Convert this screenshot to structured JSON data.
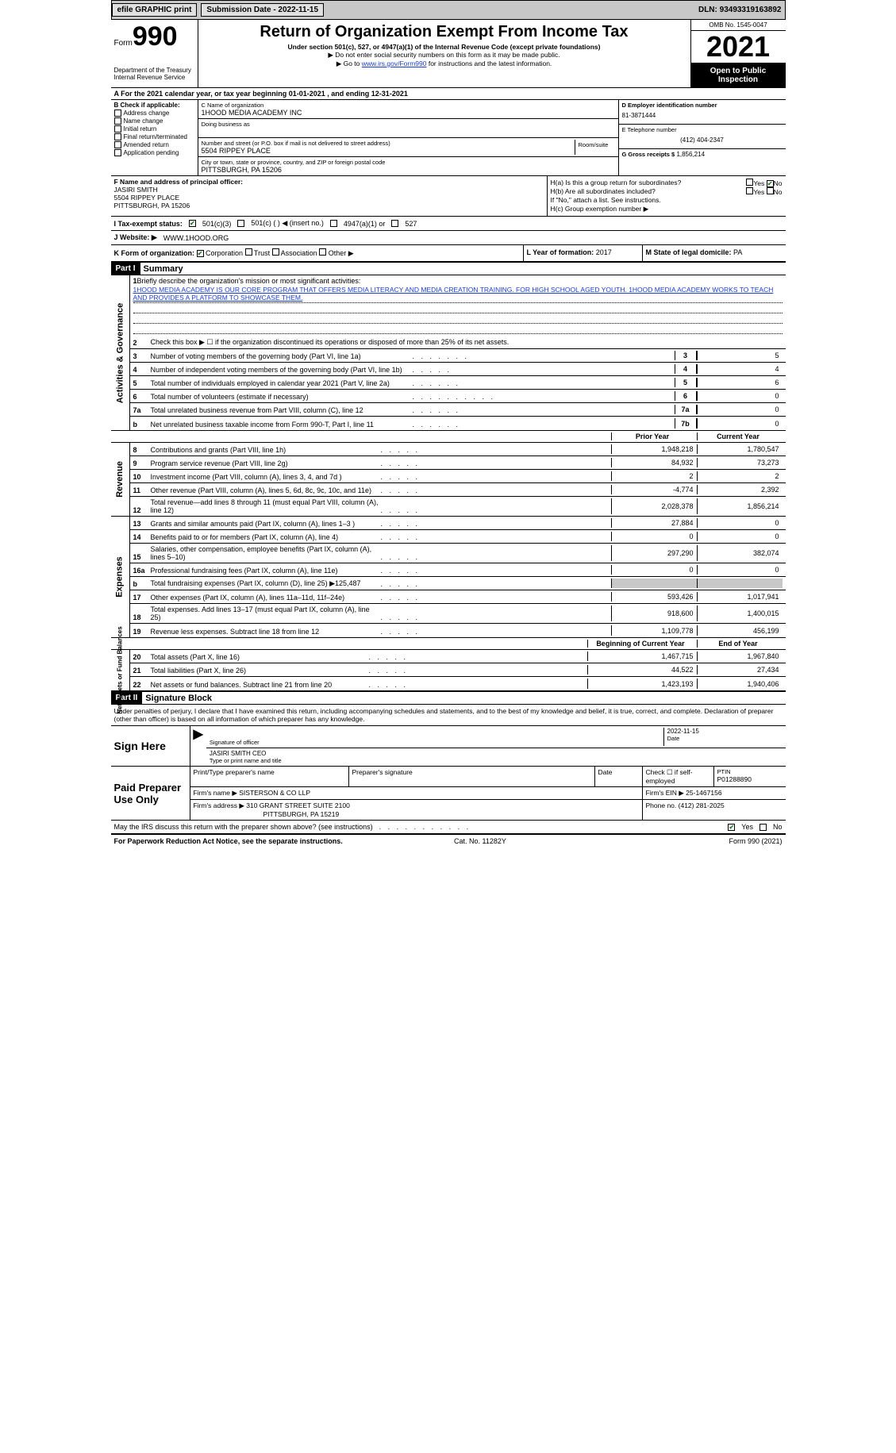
{
  "topbar": {
    "efile_label": "efile GRAPHIC print",
    "submission_date_label": "Submission Date - 2022-11-15",
    "dln_label": "DLN: 93493319163892"
  },
  "header": {
    "form_label": "Form",
    "form_number": "990",
    "title": "Return of Organization Exempt From Income Tax",
    "subtitle": "Under section 501(c), 527, or 4947(a)(1) of the Internal Revenue Code (except private foundations)",
    "note1": "▶ Do not enter social security numbers on this form as it may be made public.",
    "note2_pre": "▶ Go to ",
    "note2_link": "www.irs.gov/Form990",
    "note2_post": " for instructions and the latest information.",
    "dept": "Department of the Treasury Internal Revenue Service",
    "omb": "OMB No. 1545-0047",
    "tax_year": "2021",
    "open_pub": "Open to Public Inspection"
  },
  "lineA": {
    "text_pre": "A For the 2021 calendar year, or tax year beginning ",
    "begin": "01-01-2021",
    "mid": " , and ending ",
    "end": "12-31-2021"
  },
  "colB": {
    "label": "B Check if applicable:",
    "items": [
      "Address change",
      "Name change",
      "Initial return",
      "Final return/terminated",
      "Amended return",
      "Application pending"
    ]
  },
  "colC": {
    "name_lbl": "C Name of organization",
    "name_val": "1HOOD MEDIA ACADEMY INC",
    "dba_lbl": "Doing business as",
    "addr_lbl": "Number and street (or P.O. box if mail is not delivered to street address)",
    "addr_val": "5504 RIPPEY PLACE",
    "room_lbl": "Room/suite",
    "city_lbl": "City or town, state or province, country, and ZIP or foreign postal code",
    "city_val": "PITTSBURGH, PA  15206"
  },
  "colD": {
    "ein_lbl": "D Employer identification number",
    "ein_val": "81-3871444",
    "phone_lbl": "E Telephone number",
    "phone_val": "(412) 404-2347",
    "gross_lbl": "G Gross receipts $",
    "gross_val": "1,856,214"
  },
  "rowF": {
    "lbl": "F Name and address of principal officer:",
    "name": "JASIRI SMITH",
    "addr": "5504 RIPPEY PLACE",
    "city": "PITTSBURGH, PA  15206"
  },
  "rowH": {
    "ha": "H(a)  Is this a group return for subordinates?",
    "hb": "H(b)  Are all subordinates included?",
    "note": "If \"No,\" attach a list. See instructions.",
    "hc_lbl": "H(c)  Group exemption number ▶",
    "yes": "Yes",
    "no": "No"
  },
  "rowI": {
    "lbl": "I   Tax-exempt status:",
    "opts": [
      "501(c)(3)",
      "501(c) (  ) ◀ (insert no.)",
      "4947(a)(1) or",
      "527"
    ]
  },
  "rowJ": {
    "lbl": "J   Website: ▶",
    "val": "WWW.1HOOD.ORG"
  },
  "rowK": {
    "lbl": "K Form of organization:",
    "opts": [
      "Corporation",
      "Trust",
      "Association",
      "Other ▶"
    ]
  },
  "rowL": {
    "lbl": "L Year of formation:",
    "val": "2017"
  },
  "rowM": {
    "lbl": "M State of legal domicile:",
    "val": "PA"
  },
  "part1": {
    "hdr": "Part I",
    "title": "Summary",
    "line1_lbl": "Briefly describe the organization's mission or most significant activities:",
    "mission": "1HOOD MEDIA ACADEMY IS OUR CORE PROGRAM THAT OFFERS MEDIA LITERACY AND MEDIA CREATION TRAINING. FOR HIGH SCHOOL AGED YOUTH. 1HOOD MEDIA ACADEMY WORKS TO TEACH AND PROVIDES A PLATFORM TO SHOWCASE THEM.",
    "line2": "Check this box ▶ ☐ if the organization discontinued its operations or disposed of more than 25% of its net assets.",
    "gov_label": "Activities & Governance",
    "rev_label": "Revenue",
    "exp_label": "Expenses",
    "nab_label": "Net Assets or Fund Balances",
    "prior_year": "Prior Year",
    "current_year": "Current Year",
    "begin_year": "Beginning of Current Year",
    "end_year": "End of Year",
    "gov_lines": [
      {
        "n": "3",
        "t": "Number of voting members of the governing body (Part VI, line 1a)",
        "box": "3",
        "v": "5"
      },
      {
        "n": "4",
        "t": "Number of independent voting members of the governing body (Part VI, line 1b)",
        "box": "4",
        "v": "4"
      },
      {
        "n": "5",
        "t": "Total number of individuals employed in calendar year 2021 (Part V, line 2a)",
        "box": "5",
        "v": "6"
      },
      {
        "n": "6",
        "t": "Total number of volunteers (estimate if necessary)",
        "box": "6",
        "v": "0"
      },
      {
        "n": "7a",
        "t": "Total unrelated business revenue from Part VIII, column (C), line 12",
        "box": "7a",
        "v": "0"
      },
      {
        "n": "b",
        "t": "Net unrelated business taxable income from Form 990-T, Part I, line 11",
        "box": "7b",
        "v": "0"
      }
    ],
    "rev_lines": [
      {
        "n": "8",
        "t": "Contributions and grants (Part VIII, line 1h)",
        "p": "1,948,218",
        "c": "1,780,547"
      },
      {
        "n": "9",
        "t": "Program service revenue (Part VIII, line 2g)",
        "p": "84,932",
        "c": "73,273"
      },
      {
        "n": "10",
        "t": "Investment income (Part VIII, column (A), lines 3, 4, and 7d )",
        "p": "2",
        "c": "2"
      },
      {
        "n": "11",
        "t": "Other revenue (Part VIII, column (A), lines 5, 6d, 8c, 9c, 10c, and 11e)",
        "p": "-4,774",
        "c": "2,392"
      },
      {
        "n": "12",
        "t": "Total revenue—add lines 8 through 11 (must equal Part VIII, column (A), line 12)",
        "p": "2,028,378",
        "c": "1,856,214"
      }
    ],
    "exp_lines": [
      {
        "n": "13",
        "t": "Grants and similar amounts paid (Part IX, column (A), lines 1–3 )",
        "p": "27,884",
        "c": "0"
      },
      {
        "n": "14",
        "t": "Benefits paid to or for members (Part IX, column (A), line 4)",
        "p": "0",
        "c": "0"
      },
      {
        "n": "15",
        "t": "Salaries, other compensation, employee benefits (Part IX, column (A), lines 5–10)",
        "p": "297,290",
        "c": "382,074"
      },
      {
        "n": "16a",
        "t": "Professional fundraising fees (Part IX, column (A), line 11e)",
        "p": "0",
        "c": "0"
      },
      {
        "n": "b",
        "t": "Total fundraising expenses (Part IX, column (D), line 25) ▶125,487",
        "p": "shaded",
        "c": "shaded"
      },
      {
        "n": "17",
        "t": "Other expenses (Part IX, column (A), lines 11a–11d, 11f–24e)",
        "p": "593,426",
        "c": "1,017,941"
      },
      {
        "n": "18",
        "t": "Total expenses. Add lines 13–17 (must equal Part IX, column (A), line 25)",
        "p": "918,600",
        "c": "1,400,015"
      },
      {
        "n": "19",
        "t": "Revenue less expenses. Subtract line 18 from line 12",
        "p": "1,109,778",
        "c": "456,199"
      }
    ],
    "nab_lines": [
      {
        "n": "20",
        "t": "Total assets (Part X, line 16)",
        "p": "1,467,715",
        "c": "1,967,840"
      },
      {
        "n": "21",
        "t": "Total liabilities (Part X, line 26)",
        "p": "44,522",
        "c": "27,434"
      },
      {
        "n": "22",
        "t": "Net assets or fund balances. Subtract line 21 from line 20",
        "p": "1,423,193",
        "c": "1,940,406"
      }
    ]
  },
  "part2": {
    "hdr": "Part II",
    "title": "Signature Block",
    "perjury": "Under penalties of perjury, I declare that I have examined this return, including accompanying schedules and statements, and to the best of my knowledge and belief, it is true, correct, and complete. Declaration of preparer (other than officer) is based on all information of which preparer has any knowledge.",
    "sign_here": "Sign Here",
    "sig_officer": "Signature of officer",
    "sig_date": "2022-11-15",
    "date_lbl": "Date",
    "typed_name": "JASIRI SMITH  CEO",
    "typed_lbl": "Type or print name and title",
    "paid_lbl": "Paid Preparer Use Only",
    "pp_name_lbl": "Print/Type preparer's name",
    "pp_sig_lbl": "Preparer's signature",
    "pp_date_lbl": "Date",
    "pp_check_lbl": "Check ☐ if self-employed",
    "ptin_lbl": "PTIN",
    "ptin_val": "P01288890",
    "firm_name_lbl": "Firm's name   ▶",
    "firm_name": "SISTERSON & CO LLP",
    "firm_ein_lbl": "Firm's EIN ▶",
    "firm_ein": "25-1467156",
    "firm_addr_lbl": "Firm's address ▶",
    "firm_addr": "310 GRANT STREET SUITE 2100",
    "firm_city": "PITTSBURGH, PA  15219",
    "firm_phone_lbl": "Phone no.",
    "firm_phone": "(412) 281-2025",
    "discuss": "May the IRS discuss this return with the preparer shown above? (see instructions)",
    "yes": "Yes",
    "no": "No"
  },
  "footer": {
    "pra": "For Paperwork Reduction Act Notice, see the separate instructions.",
    "cat": "Cat. No. 11282Y",
    "form": "Form 990 (2021)"
  }
}
